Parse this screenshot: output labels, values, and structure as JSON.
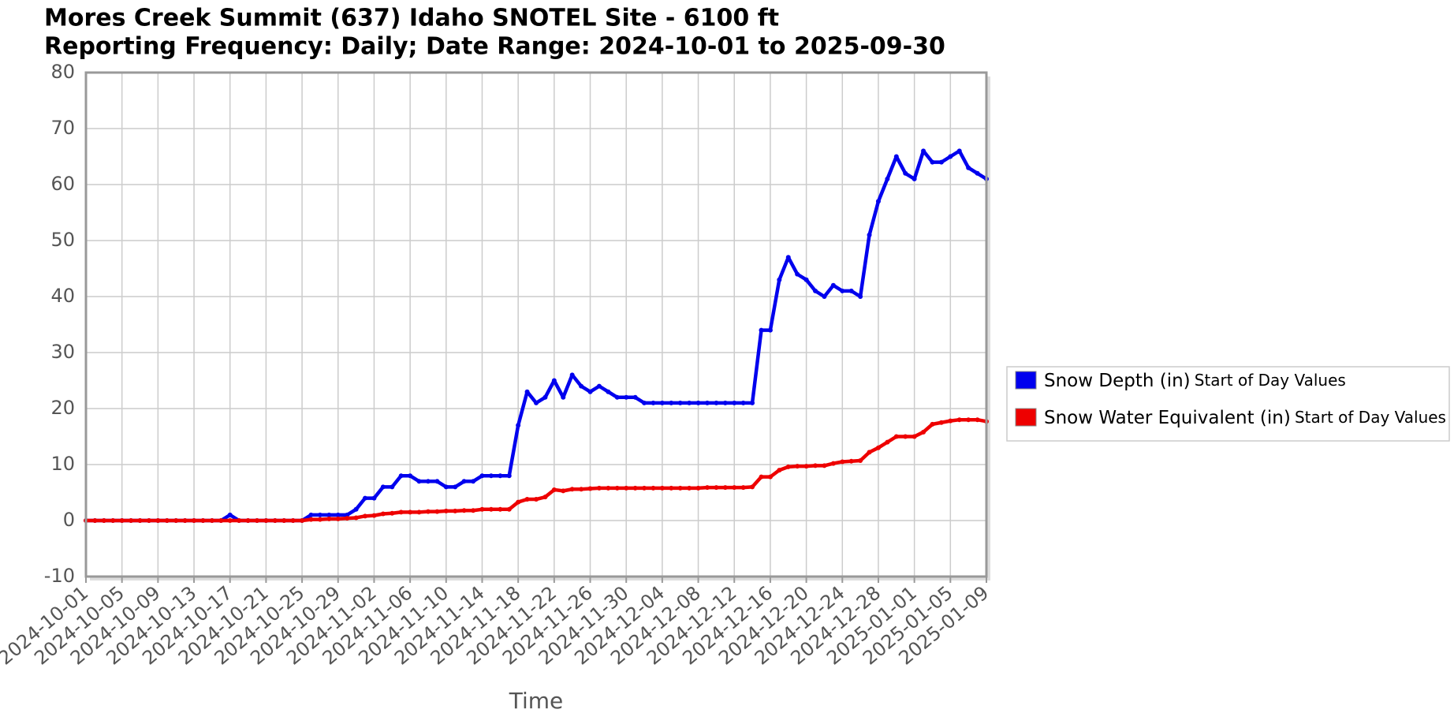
{
  "chart_data": {
    "type": "line",
    "title": "Mores Creek Summit (637) Idaho SNOTEL Site - 6100 ft",
    "subtitle": "Reporting Frequency: Daily; Date Range: 2024-10-01 to 2025-09-30",
    "xlabel": "Time",
    "x": [
      "2024-10-01",
      "2024-10-02",
      "2024-10-03",
      "2024-10-04",
      "2024-10-05",
      "2024-10-06",
      "2024-10-07",
      "2024-10-08",
      "2024-10-09",
      "2024-10-10",
      "2024-10-11",
      "2024-10-12",
      "2024-10-13",
      "2024-10-14",
      "2024-10-15",
      "2024-10-16",
      "2024-10-17",
      "2024-10-18",
      "2024-10-19",
      "2024-10-20",
      "2024-10-21",
      "2024-10-22",
      "2024-10-23",
      "2024-10-24",
      "2024-10-25",
      "2024-10-26",
      "2024-10-27",
      "2024-10-28",
      "2024-10-29",
      "2024-10-30",
      "2024-10-31",
      "2024-11-01",
      "2024-11-02",
      "2024-11-03",
      "2024-11-04",
      "2024-11-05",
      "2024-11-06",
      "2024-11-07",
      "2024-11-08",
      "2024-11-09",
      "2024-11-10",
      "2024-11-11",
      "2024-11-12",
      "2024-11-13",
      "2024-11-14",
      "2024-11-15",
      "2024-11-16",
      "2024-11-17",
      "2024-11-18",
      "2024-11-19",
      "2024-11-20",
      "2024-11-21",
      "2024-11-22",
      "2024-11-23",
      "2024-11-24",
      "2024-11-25",
      "2024-11-26",
      "2024-11-27",
      "2024-11-28",
      "2024-11-29",
      "2024-11-30",
      "2024-12-01",
      "2024-12-02",
      "2024-12-03",
      "2024-12-04",
      "2024-12-05",
      "2024-12-06",
      "2024-12-07",
      "2024-12-08",
      "2024-12-09",
      "2024-12-10",
      "2024-12-11",
      "2024-12-12",
      "2024-12-13",
      "2024-12-14",
      "2024-12-15",
      "2024-12-16",
      "2024-12-17",
      "2024-12-18",
      "2024-12-19",
      "2024-12-20",
      "2024-12-21",
      "2024-12-22",
      "2024-12-23",
      "2024-12-24",
      "2024-12-25",
      "2024-12-26",
      "2024-12-27",
      "2024-12-28",
      "2024-12-29",
      "2024-12-30",
      "2024-12-31",
      "2025-01-01",
      "2025-01-02",
      "2025-01-03",
      "2025-01-04",
      "2025-01-05",
      "2025-01-06",
      "2025-01-07",
      "2025-01-08",
      "2025-01-09"
    ],
    "series": [
      {
        "name": "Snow Depth (in)",
        "duration": "Start of Day Values",
        "color": "#0000ee",
        "values": [
          0,
          0,
          0,
          0,
          0,
          0,
          0,
          0,
          0,
          0,
          0,
          0,
          0,
          0,
          0,
          0,
          1,
          0,
          0,
          0,
          0,
          0,
          0,
          0,
          0,
          1,
          1,
          1,
          1,
          1,
          2,
          4,
          4,
          6,
          6,
          8,
          8,
          7,
          7,
          7,
          6,
          6,
          7,
          7,
          8,
          8,
          8,
          8,
          17,
          23,
          21,
          22,
          25,
          22,
          26,
          24,
          23,
          24,
          23,
          22,
          22,
          22,
          21,
          21,
          21,
          21,
          21,
          21,
          21,
          21,
          21,
          21,
          21,
          21,
          21,
          34,
          34,
          43,
          47,
          44,
          43,
          41,
          40,
          42,
          41,
          41,
          40,
          51,
          57,
          61,
          65,
          62,
          61,
          66,
          64,
          64,
          65,
          66,
          63,
          62,
          61
        ]
      },
      {
        "name": "Snow Water Equivalent (in)",
        "duration": "Start of Day Values",
        "color": "#ee0000",
        "values": [
          0,
          0,
          0,
          0,
          0,
          0,
          0,
          0,
          0,
          0,
          0,
          0,
          0,
          0,
          0,
          0,
          0,
          0,
          0,
          0,
          0,
          0,
          0,
          0,
          0,
          0.2,
          0.2,
          0.3,
          0.3,
          0.4,
          0.5,
          0.8,
          0.9,
          1.2,
          1.3,
          1.5,
          1.5,
          1.5,
          1.6,
          1.6,
          1.7,
          1.7,
          1.8,
          1.8,
          2,
          2,
          2,
          2,
          3.3,
          3.8,
          3.8,
          4.2,
          5.5,
          5.3,
          5.6,
          5.6,
          5.7,
          5.8,
          5.8,
          5.8,
          5.8,
          5.8,
          5.8,
          5.8,
          5.8,
          5.8,
          5.8,
          5.8,
          5.8,
          5.9,
          5.9,
          5.9,
          5.9,
          5.9,
          6,
          7.8,
          7.8,
          9,
          9.6,
          9.7,
          9.7,
          9.8,
          9.8,
          10.2,
          10.5,
          10.6,
          10.7,
          12.2,
          13,
          14,
          15,
          15,
          15,
          15.8,
          17.2,
          17.5,
          17.8,
          18,
          18,
          18,
          17.7
        ]
      }
    ],
    "xlim": [
      "2024-10-01",
      "2025-01-09"
    ],
    "xticks": [
      "2024-10-01",
      "2024-10-05",
      "2024-10-09",
      "2024-10-13",
      "2024-10-17",
      "2024-10-21",
      "2024-10-25",
      "2024-10-29",
      "2024-11-02",
      "2024-11-06",
      "2024-11-10",
      "2024-11-14",
      "2024-11-18",
      "2024-11-22",
      "2024-11-26",
      "2024-11-30",
      "2024-12-04",
      "2024-12-08",
      "2024-12-12",
      "2024-12-16",
      "2024-12-20",
      "2024-12-24",
      "2024-12-28",
      "2025-01-01",
      "2025-01-05",
      "2025-01-09"
    ],
    "ylim": [
      -10,
      80
    ],
    "yticks": [
      -10,
      0,
      10,
      20,
      30,
      40,
      50,
      60,
      70,
      80
    ],
    "grid": true
  }
}
